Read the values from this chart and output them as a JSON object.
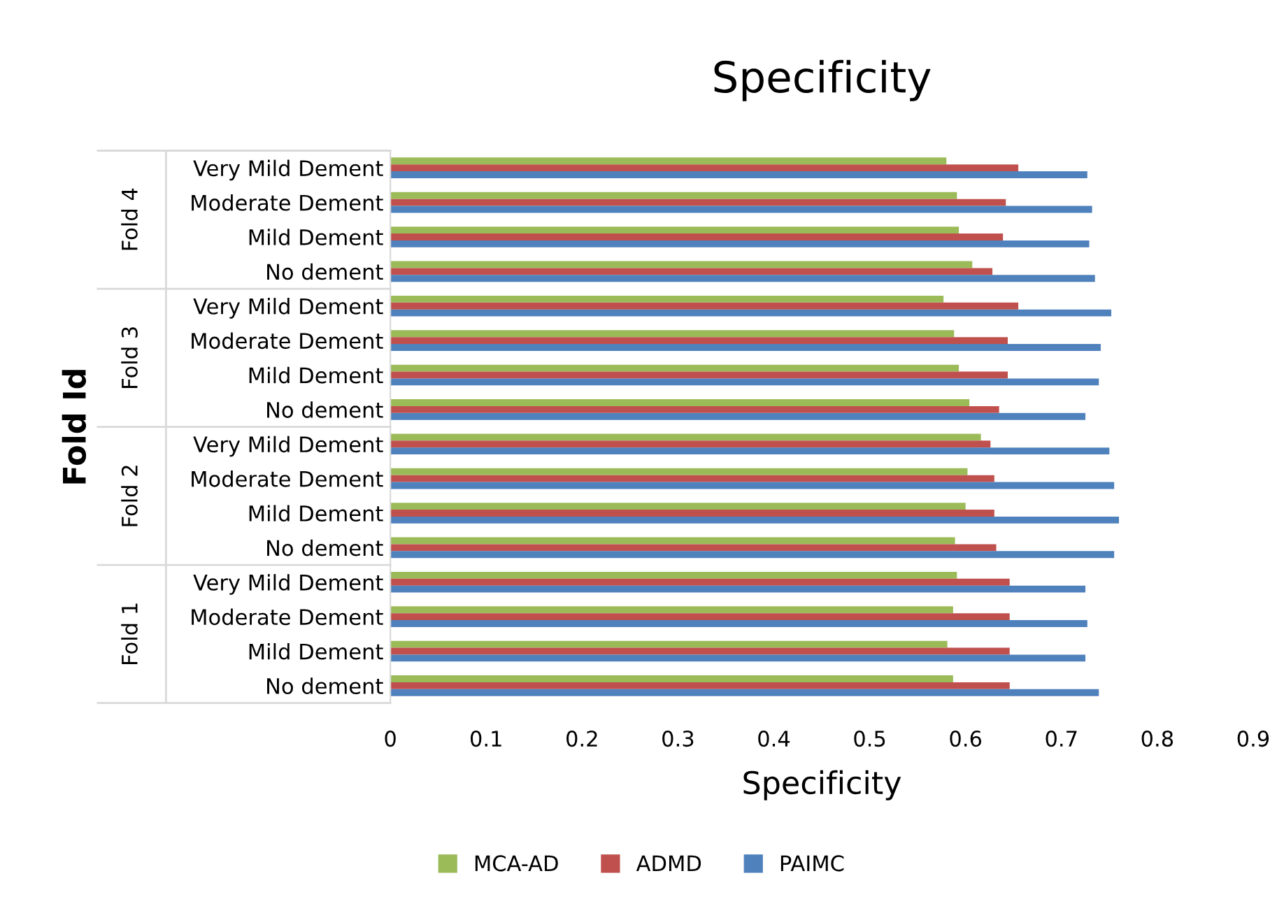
{
  "chart_data": {
    "type": "bar",
    "orientation": "horizontal",
    "title": "Specificity",
    "xlabel": "Specificity",
    "ylabel": "Fold Id",
    "categories": [
      "Very Mild Dement",
      "Moderate Dement",
      "Mild Dement",
      "No dement",
      "Very Mild Dement",
      "Moderate Dement",
      "Mild Dement",
      "No dement",
      "Very Mild Dement",
      "Moderate Dement",
      "Mild Dement",
      "No dement",
      "Very Mild Dement",
      "Moderate Dement",
      "Mild Dement",
      "No dement"
    ],
    "annotations": [
      "Fold 4",
      "Fold 3",
      "Fold 2",
      "Fold 1"
    ],
    "series": [
      {
        "name": "MCA-AD",
        "color": "#9bbb59",
        "values": [
          0.58,
          0.591,
          0.593,
          0.607,
          0.577,
          0.588,
          0.593,
          0.604,
          0.616,
          0.602,
          0.6,
          0.589,
          0.591,
          0.587,
          0.581,
          0.587
        ]
      },
      {
        "name": "ADMD",
        "color": "#c0504d",
        "values": [
          0.655,
          0.642,
          0.639,
          0.628,
          0.655,
          0.644,
          0.644,
          0.635,
          0.626,
          0.63,
          0.63,
          0.632,
          0.646,
          0.646,
          0.646,
          0.646
        ]
      },
      {
        "name": "PAIMC",
        "color": "#4f81bd",
        "values": [
          0.727,
          0.732,
          0.729,
          0.735,
          0.752,
          0.741,
          0.739,
          0.725,
          0.75,
          0.755,
          0.76,
          0.755,
          0.725,
          0.727,
          0.725,
          0.739
        ]
      }
    ],
    "xlim": [
      0,
      0.9
    ],
    "xticks": [
      0,
      0.1,
      0.2,
      0.3,
      0.4,
      0.5,
      0.6,
      0.7,
      0.8,
      0.9
    ],
    "grid": false,
    "legend": "bottom"
  }
}
